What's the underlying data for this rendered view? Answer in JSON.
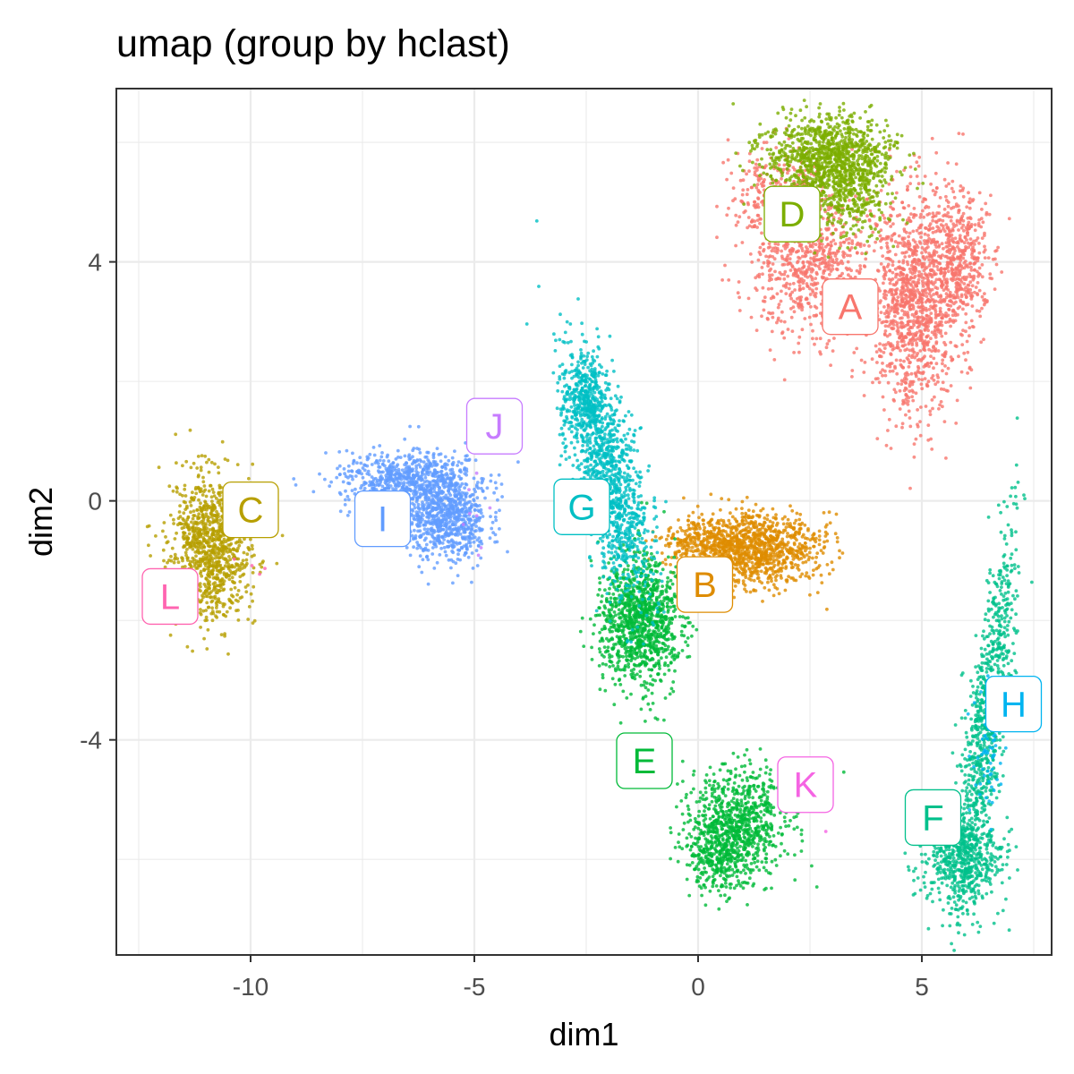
{
  "chart_data": {
    "type": "scatter",
    "title": "umap (group by hclast)",
    "xlabel": "dim1",
    "ylabel": "dim2",
    "xlim": [
      -13.0,
      7.9
    ],
    "ylim": [
      -7.6,
      6.9
    ],
    "x_ticks": [
      -10,
      -5,
      0,
      5
    ],
    "y_ticks": [
      -4,
      0,
      4
    ],
    "grid": true,
    "legend": "none",
    "clusters": [
      {
        "name": "A",
        "color": "#F8766D",
        "label_pos": [
          3.4,
          3.25
        ],
        "regions": [
          {
            "x": 4.8,
            "y": 3.3,
            "sx": 0.45,
            "sy": 0.95,
            "n": 1100
          },
          {
            "x": 5.8,
            "y": 4.0,
            "sx": 0.35,
            "sy": 0.6,
            "n": 500
          },
          {
            "x": 2.6,
            "y": 3.9,
            "sx": 0.7,
            "sy": 0.6,
            "n": 700
          },
          {
            "x": 1.8,
            "y": 5.0,
            "sx": 0.5,
            "sy": 0.45,
            "n": 350
          }
        ]
      },
      {
        "name": "B",
        "color": "#DE8C00",
        "label_pos": [
          0.15,
          -1.4
        ],
        "regions": [
          {
            "x": 1.3,
            "y": -0.8,
            "sx": 0.75,
            "sy": 0.3,
            "n": 1000
          },
          {
            "x": 0.1,
            "y": -0.7,
            "sx": 0.5,
            "sy": 0.18,
            "n": 250
          }
        ]
      },
      {
        "name": "C",
        "color": "#B79F00",
        "label_pos": [
          -10.0,
          -0.15
        ],
        "regions": [
          {
            "x": -10.9,
            "y": -0.8,
            "sx": 0.45,
            "sy": 0.6,
            "n": 1000
          }
        ]
      },
      {
        "name": "D",
        "color": "#7CAE00",
        "label_pos": [
          2.1,
          4.8
        ],
        "regions": [
          {
            "x": 2.9,
            "y": 5.75,
            "sx": 0.7,
            "sy": 0.35,
            "n": 1000
          },
          {
            "x": 3.4,
            "y": 5.1,
            "sx": 0.45,
            "sy": 0.4,
            "n": 300
          }
        ]
      },
      {
        "name": "E",
        "color": "#00BA38",
        "label_pos": [
          -1.2,
          -4.35
        ],
        "regions": [
          {
            "x": -1.3,
            "y": -2.0,
            "sx": 0.45,
            "sy": 0.55,
            "n": 1100
          },
          {
            "x": 0.9,
            "y": -5.4,
            "sx": 0.55,
            "sy": 0.45,
            "n": 800
          },
          {
            "x": 0.4,
            "y": -5.95,
            "sx": 0.35,
            "sy": 0.3,
            "n": 250
          }
        ]
      },
      {
        "name": "F",
        "color": "#00C08B",
        "label_pos": [
          5.25,
          -5.3
        ],
        "regions": [
          {
            "x": 5.9,
            "y": -6.0,
            "sx": 0.5,
            "sy": 0.35,
            "n": 500
          },
          {
            "x": 6.4,
            "y": -3.9,
            "sx": 0.22,
            "sy": 1.6,
            "n": 900,
            "slope": 0.18
          }
        ]
      },
      {
        "name": "G",
        "color": "#00BFC4",
        "label_pos": [
          -2.6,
          -0.1
        ],
        "regions": [
          {
            "x": -2.0,
            "y": 0.4,
            "sx": 0.35,
            "sy": 1.0,
            "n": 1100,
            "slope": -0.3
          },
          {
            "x": -2.55,
            "y": 1.7,
            "sx": 0.25,
            "sy": 0.35,
            "n": 300
          }
        ]
      },
      {
        "name": "H",
        "color": "#00B4F0",
        "label_pos": [
          7.05,
          -3.4
        ],
        "regions": [
          {
            "x": 6.5,
            "y": -4.2,
            "sx": 0.18,
            "sy": 0.6,
            "n": 60
          }
        ]
      },
      {
        "name": "I",
        "color": "#619CFF",
        "label_pos": [
          -7.05,
          -0.3
        ],
        "regions": [
          {
            "x": -6.5,
            "y": 0.35,
            "sx": 0.75,
            "sy": 0.25,
            "n": 700
          },
          {
            "x": -5.6,
            "y": -0.3,
            "sx": 0.45,
            "sy": 0.35,
            "n": 700
          }
        ]
      },
      {
        "name": "J",
        "color": "#C77CFF",
        "label_pos": [
          -4.55,
          1.25
        ],
        "regions": [
          {
            "x": -5.0,
            "y": -0.3,
            "sx": 0.2,
            "sy": 0.3,
            "n": 8
          }
        ]
      },
      {
        "name": "K",
        "color": "#F564E3",
        "label_pos": [
          2.4,
          -4.75
        ],
        "regions": [
          {
            "x": 2.8,
            "y": -5.5,
            "sx": 0.05,
            "sy": 0.05,
            "n": 1
          }
        ]
      },
      {
        "name": "L",
        "color": "#FF64B0",
        "label_pos": [
          -11.8,
          -1.6
        ],
        "regions": [
          {
            "x": -10.2,
            "y": -1.0,
            "sx": 0.2,
            "sy": 0.2,
            "n": 4
          }
        ]
      }
    ]
  }
}
